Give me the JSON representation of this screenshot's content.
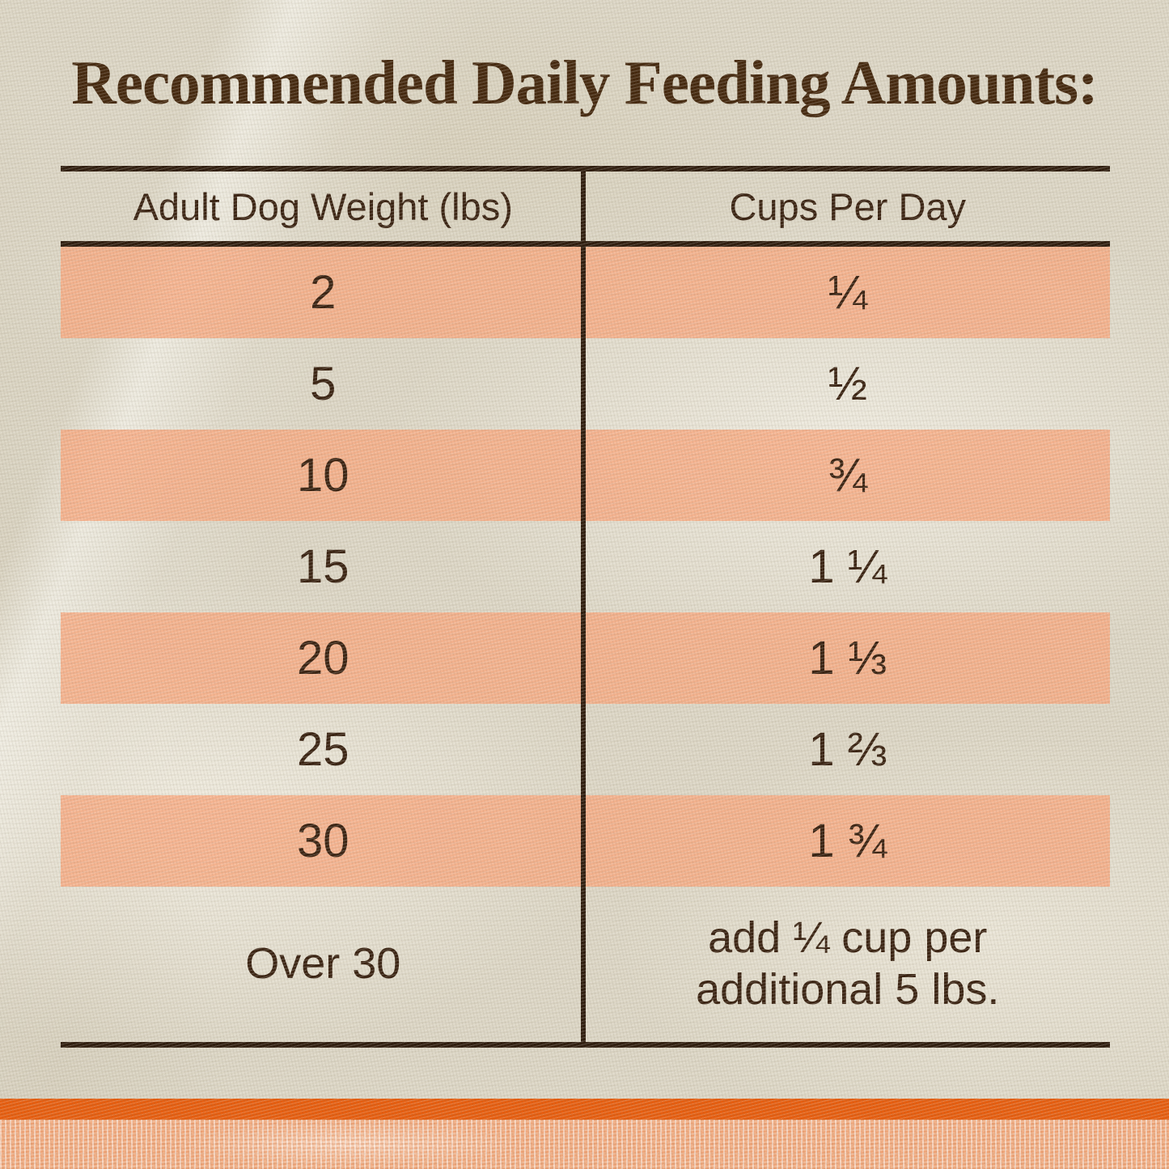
{
  "title": "Recommended Daily Feeding Amounts:",
  "chart_data": {
    "type": "table",
    "title": "Recommended Daily Feeding Amounts:",
    "columns": [
      "Adult Dog Weight (lbs)",
      "Cups Per Day"
    ],
    "rows": [
      [
        "2",
        "¼"
      ],
      [
        "5",
        "½"
      ],
      [
        "10",
        "¾"
      ],
      [
        "15",
        "1 ¼"
      ],
      [
        "20",
        "1 ⅓"
      ],
      [
        "25",
        "1 ⅔"
      ],
      [
        "30",
        "1 ¾"
      ],
      [
        "Over 30",
        "add ¼ cup per additional 5 lbs."
      ]
    ],
    "note_lines": [
      "add ¼ cup per",
      "additional 5 lbs."
    ],
    "highlighted_rows": [
      0,
      2,
      4,
      6
    ]
  },
  "colors": {
    "title_brown": "#45290f",
    "text_brown": "#3a2312",
    "line_brown": "#2f1d0e",
    "stripe_peach": "#f0b18c",
    "accent_orange": "#e65e10",
    "fabric_cream": "#dcd6c5",
    "bottom_fabric_peach": "#f2b28a"
  }
}
